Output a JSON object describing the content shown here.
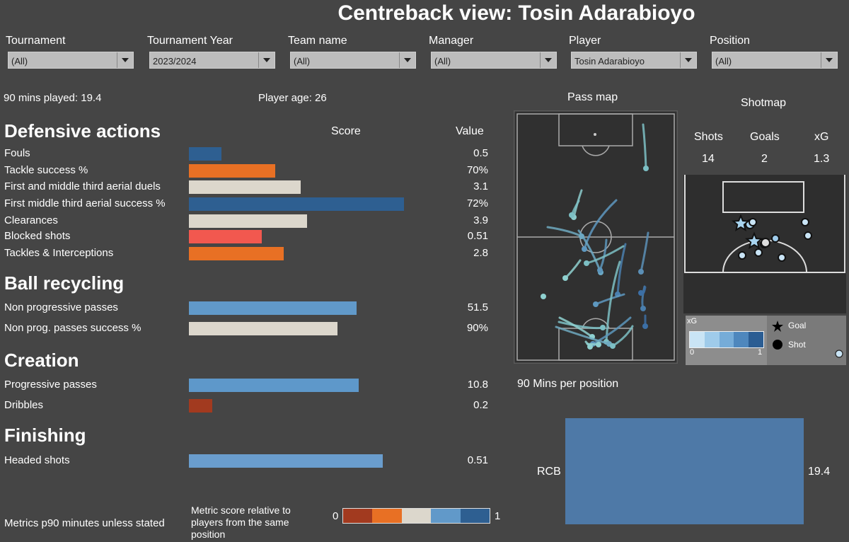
{
  "title": "Centreback view:  Tosin Adarabioyo",
  "filters": [
    {
      "label": "Tournament",
      "value": "(All)"
    },
    {
      "label": "Tournament Year",
      "value": "2023/2024"
    },
    {
      "label": "Team name",
      "value": "(All)"
    },
    {
      "label": "Manager",
      "value": "(All)"
    },
    {
      "label": "Player",
      "value": "Tosin Adarabioyo"
    },
    {
      "label": "Position",
      "value": "(All)"
    }
  ],
  "info": {
    "mins_played": "90 mins played: 19.4",
    "player_age": "Player age: 26"
  },
  "table_headers": {
    "score": "Score",
    "value": "Value"
  },
  "sections": [
    {
      "title": "Defensive actions",
      "metrics": [
        {
          "label": "Fouls",
          "value": "0.5",
          "score": 0.15
        },
        {
          "label": "Tackle success %",
          "value": "70%",
          "score": 0.4
        },
        {
          "label": "First and middle third aerial duels",
          "value": "3.1",
          "score": 0.52
        },
        {
          "label": "First middle third aerial success %",
          "value": "72%",
          "score": 1.0
        },
        {
          "label": "Clearances",
          "value": "3.9",
          "score": 0.55
        },
        {
          "label": "Blocked shots",
          "value": "0.51",
          "score": 0.34
        },
        {
          "label": "Tackles & Interceptions",
          "value": "2.8",
          "score": 0.44
        }
      ]
    },
    {
      "title": "Ball recycling",
      "metrics": [
        {
          "label": "Non progressive passes",
          "value": "51.5",
          "score": 0.78
        },
        {
          "label": "Non prog. passes success %",
          "value": "90%",
          "score": 0.69
        }
      ]
    },
    {
      "title": "Creation",
      "metrics": [
        {
          "label": "Progressive passes",
          "value": "10.8",
          "score": 0.79
        },
        {
          "label": "Dribbles",
          "value": "0.2",
          "score": 0.11
        }
      ]
    },
    {
      "title": "Finishing",
      "metrics": [
        {
          "label": "Headed shots",
          "value": "0.51",
          "score": 0.9
        }
      ]
    }
  ],
  "score_colors": {
    "fouls": "#2e5f91",
    "tackle": "#e87024",
    "aerial_duels": "#dcd7cc",
    "aerial_success": "#2e5f91",
    "clearances": "#dcd7cc",
    "blocked": "#f2584f",
    "tackles_int": "#e87024",
    "nonprog": "#6199c9",
    "nonprog_pct": "#dcd7cc",
    "progressive": "#5e98ca",
    "dribbles": "#a23a1f",
    "headed": "#6a9dcd"
  },
  "footer": {
    "metrics_note": "Metrics p90 minutes unless stated",
    "score_note": "Metric score relative to players from the same position",
    "legend_min": "0",
    "legend_max": "1",
    "legend_colors": [
      "#a23a1f",
      "#e87024",
      "#dcd7cc",
      "#6199c9",
      "#2e5f91"
    ]
  },
  "pass_map": {
    "title": "Pass map"
  },
  "shotmap": {
    "title": "Shotmap",
    "stats_labels": [
      "Shots",
      "Goals",
      "xG"
    ],
    "stats_values": [
      "14",
      "2",
      "1.3"
    ],
    "legend": {
      "xg_label": "xG",
      "xg_min": "0",
      "xg_max": "1",
      "goal": "Goal",
      "shot": "Shot"
    }
  },
  "position_chart": {
    "title": "90 Mins per position",
    "chart_data": {
      "type": "bar",
      "categories": [
        "RCB"
      ],
      "values": [
        19.4
      ],
      "value_labels": [
        "19.4"
      ]
    }
  }
}
